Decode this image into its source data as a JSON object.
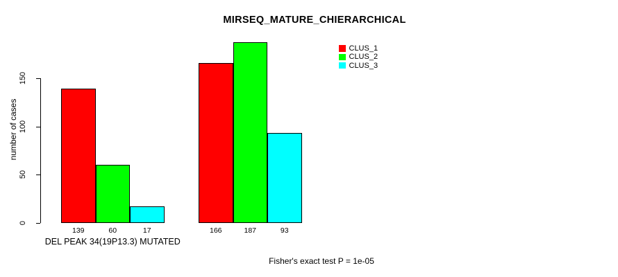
{
  "chart_data": {
    "type": "bar",
    "title": "MIRSEQ_MATURE_CHIERARCHICAL",
    "categories": [
      "DEL PEAK 34(19P13.3) MUTATED",
      ""
    ],
    "series": [
      {
        "name": "CLUS_1",
        "color": "#FF0000",
        "values": [
          139,
          166
        ]
      },
      {
        "name": "CLUS_2",
        "color": "#00FF00",
        "values": [
          60,
          187
        ]
      },
      {
        "name": "CLUS_3",
        "color": "#00FFFF",
        "values": [
          17,
          93
        ]
      }
    ],
    "ylabel": "number of cases",
    "xlabel": "",
    "y_ticks": [
      0,
      50,
      100,
      150
    ],
    "ylim": [
      0,
      195
    ],
    "grid": false,
    "legend_position": "top-right",
    "bar_value_labels": true,
    "annotation": "Fisher's exact test P = 1e-05"
  }
}
